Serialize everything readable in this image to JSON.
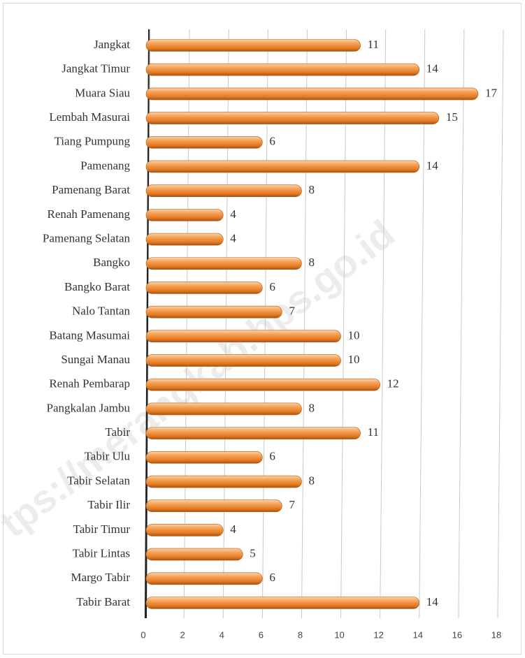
{
  "chart_data": {
    "type": "bar",
    "orientation": "horizontal",
    "categories": [
      "Jangkat",
      "Jangkat Timur",
      "Muara Siau",
      "Lembah Masurai",
      "Tiang Pumpung",
      "Pamenang",
      "Pamenang Barat",
      "Renah Pamenang",
      "Pamenang Selatan",
      "Bangko",
      "Bangko Barat",
      "Nalo Tantan",
      "Batang Masumai",
      "Sungai Manau",
      "Renah Pembarap",
      "Pangkalan Jambu",
      "Tabir",
      "Tabir Ulu",
      "Tabir Selatan",
      "Tabir Ilir",
      "Tabir Timur",
      "Tabir Lintas",
      "Margo Tabir",
      "Tabir Barat"
    ],
    "values": [
      11,
      14,
      17,
      15,
      6,
      14,
      8,
      4,
      4,
      8,
      6,
      7,
      10,
      10,
      12,
      8,
      11,
      6,
      8,
      7,
      4,
      5,
      6,
      14
    ],
    "color": "#f0923e",
    "xlim": [
      0,
      18
    ],
    "xticks": [
      0,
      2,
      4,
      6,
      8,
      10,
      12,
      14,
      16,
      18
    ],
    "grid": true,
    "watermark": "tps://merangkab.bps.go.id"
  }
}
